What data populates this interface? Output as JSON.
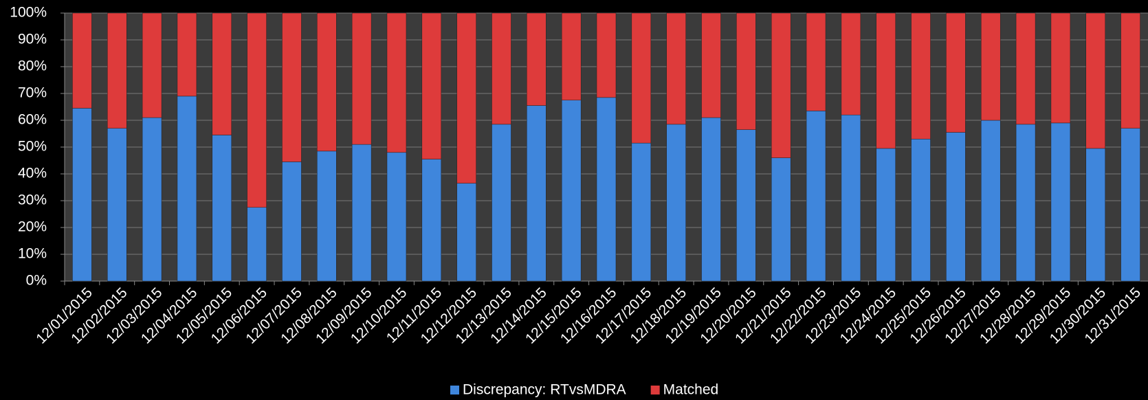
{
  "chart_data": {
    "type": "stacked_bar",
    "categories": [
      "12/01/2015",
      "12/02/2015",
      "12/03/2015",
      "12/04/2015",
      "12/05/2015",
      "12/06/2015",
      "12/07/2015",
      "12/08/2015",
      "12/09/2015",
      "12/10/2015",
      "12/11/2015",
      "12/12/2015",
      "12/13/2015",
      "12/14/2015",
      "12/15/2015",
      "12/16/2015",
      "12/17/2015",
      "12/18/2015",
      "12/19/2015",
      "12/20/2015",
      "12/21/2015",
      "12/22/2015",
      "12/23/2015",
      "12/24/2015",
      "12/25/2015",
      "12/26/2015",
      "12/27/2015",
      "12/28/2015",
      "12/29/2015",
      "12/30/2015",
      "12/31/2015"
    ],
    "series": [
      {
        "name": "Discrepancy: RTvsMDRA",
        "color": "#3f86dc",
        "values": [
          64.5,
          57,
          61,
          69,
          54.5,
          27.5,
          44.5,
          48.5,
          51,
          48,
          45.5,
          36.5,
          58.5,
          65.5,
          67.5,
          68.5,
          51.5,
          58.5,
          61,
          56.5,
          46,
          63.5,
          62,
          49.5,
          53,
          55.5,
          60,
          58.5,
          59,
          49.5,
          57
        ]
      },
      {
        "name": "Matched",
        "color": "#de3b3b",
        "values": [
          35.5,
          43,
          39,
          31,
          45.5,
          72.5,
          55.5,
          51.5,
          49,
          52,
          54.5,
          63.5,
          41.5,
          34.5,
          32.5,
          31.5,
          48.5,
          41.5,
          39,
          43.5,
          54,
          36.5,
          38,
          50.5,
          47,
          44.5,
          40,
          41.5,
          41,
          50.5,
          43
        ]
      }
    ],
    "ylim": [
      0,
      100
    ],
    "yticks": [
      {
        "value": 0,
        "label": "0%"
      },
      {
        "value": 10,
        "label": "10%"
      },
      {
        "value": 20,
        "label": "20%"
      },
      {
        "value": 30,
        "label": "30%"
      },
      {
        "value": 40,
        "label": "40%"
      },
      {
        "value": 50,
        "label": "50%"
      },
      {
        "value": 60,
        "label": "60%"
      },
      {
        "value": 70,
        "label": "70%"
      },
      {
        "value": 80,
        "label": "80%"
      },
      {
        "value": 90,
        "label": "90%"
      },
      {
        "value": 100,
        "label": "100%"
      }
    ],
    "grid": true,
    "legend": "bottom"
  }
}
